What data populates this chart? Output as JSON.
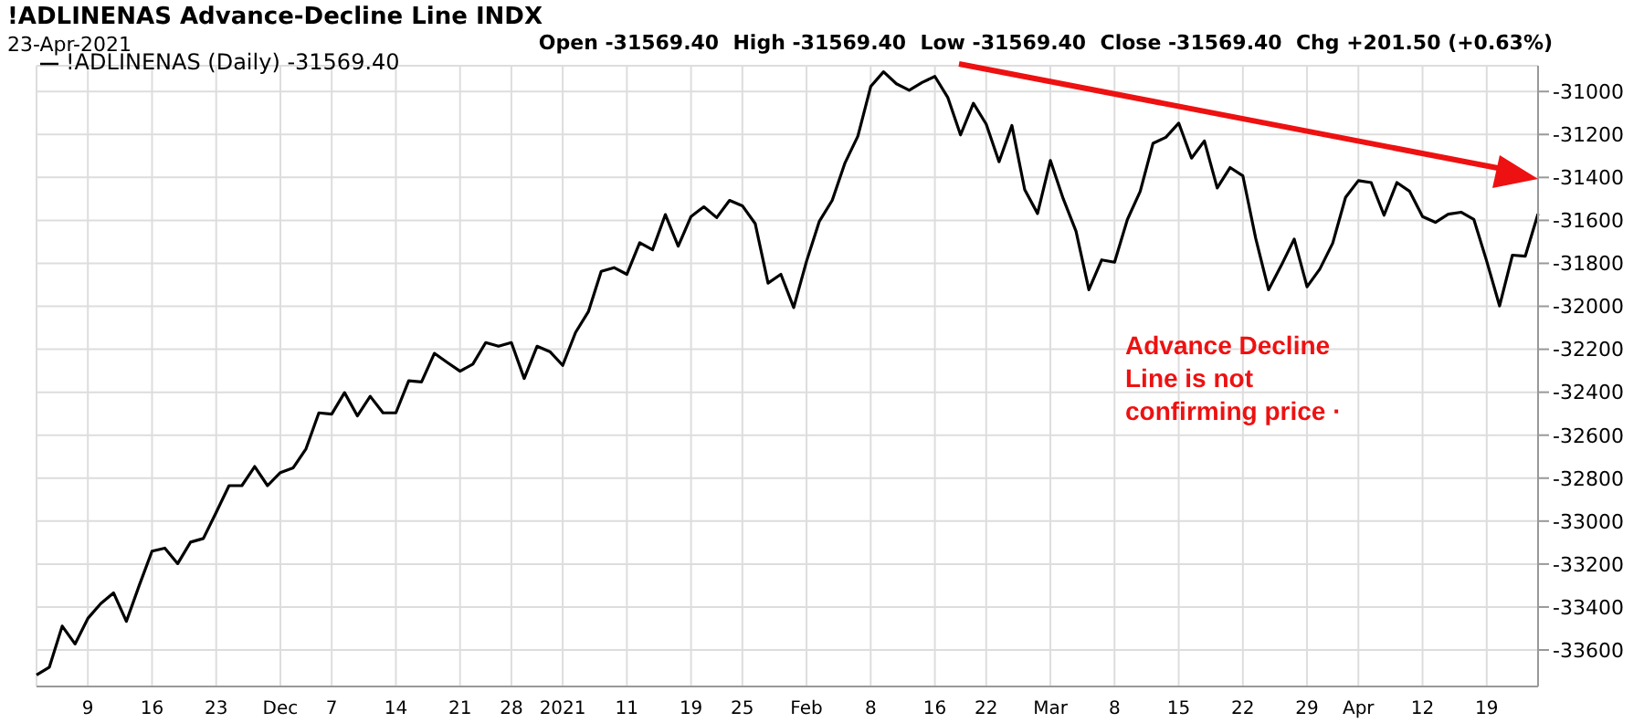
{
  "chart_data": {
    "type": "line",
    "title": "!ADLINENAS Advance-Decline Line INDX",
    "subtitle": "23-Apr-2021",
    "annotations": [
      "Open -31569.40  High -31569.40  Low -31569.40  Close -31569.40  Chg +201.50 (+0.63%)",
      "Advance Decline Line is not confirming price ·"
    ],
    "categories": [
      null,
      null,
      null,
      null,
      "9",
      null,
      null,
      null,
      null,
      "16",
      null,
      null,
      null,
      null,
      "23",
      null,
      null,
      null,
      null,
      "Dec",
      null,
      null,
      null,
      "7",
      null,
      null,
      null,
      null,
      "14",
      null,
      null,
      null,
      null,
      "21",
      null,
      null,
      null,
      "28",
      null,
      null,
      null,
      "2021",
      null,
      null,
      null,
      null,
      "11",
      null,
      null,
      null,
      null,
      "19",
      null,
      null,
      null,
      "25",
      null,
      null,
      null,
      null,
      "Feb",
      null,
      null,
      null,
      null,
      "8",
      null,
      null,
      null,
      null,
      "16",
      null,
      null,
      null,
      "22",
      null,
      null,
      null,
      null,
      "Mar",
      null,
      null,
      null,
      null,
      "8",
      null,
      null,
      null,
      null,
      "15",
      null,
      null,
      null,
      null,
      "22",
      null,
      null,
      null,
      null,
      "29",
      null,
      null,
      null,
      "Apr",
      null,
      null,
      null,
      null,
      "12",
      null,
      null,
      null,
      null,
      "19",
      null,
      null,
      null,
      null
    ],
    "series": [
      {
        "name": "!ADLINENAS (Daily) -31569.40",
        "color": "#000000",
        "values": [
          -33716,
          -33680,
          -33489,
          -33572,
          -33453,
          -33384,
          -33334,
          -33467,
          -33300,
          -33140,
          -33126,
          -33198,
          -33098,
          -33081,
          -32959,
          -32835,
          -32835,
          -32746,
          -32835,
          -32774,
          -32752,
          -32663,
          -32496,
          -32502,
          -32402,
          -32510,
          -32419,
          -32496,
          -32496,
          -32347,
          -32352,
          -32219,
          -32261,
          -32302,
          -32269,
          -32169,
          -32186,
          -32169,
          -32336,
          -32186,
          -32211,
          -32275,
          -32122,
          -32025,
          -31837,
          -31820,
          -31851,
          -31704,
          -31737,
          -31573,
          -31720,
          -31582,
          -31537,
          -31587,
          -31507,
          -31532,
          -31615,
          -31892,
          -31851,
          -32006,
          -31790,
          -31604,
          -31507,
          -31332,
          -31208,
          -30977,
          -30908,
          -30964,
          -30994,
          -30958,
          -30930,
          -31027,
          -31202,
          -31055,
          -31152,
          -31327,
          -31158,
          -31457,
          -31568,
          -31321,
          -31499,
          -31651,
          -31923,
          -31784,
          -31795,
          -31596,
          -31465,
          -31241,
          -31213,
          -31147,
          -31310,
          -31230,
          -31449,
          -31354,
          -31393,
          -31684,
          -31923,
          -31809,
          -31687,
          -31909,
          -31826,
          -31706,
          -31493,
          -31415,
          -31424,
          -31576,
          -31424,
          -31465,
          -31582,
          -31609,
          -31571,
          -31562,
          -31596,
          -31790,
          -31998,
          -31762,
          -31767,
          -31569.4
        ]
      }
    ],
    "ylim": [
      -33770,
      -30880
    ],
    "yticks": [
      -33600,
      -33400,
      -33200,
      -33000,
      -32800,
      -32600,
      -32400,
      -32200,
      -32000,
      -31800,
      -31600,
      -31400,
      -31200,
      -31000
    ],
    "grid": true,
    "legend": "top left"
  }
}
